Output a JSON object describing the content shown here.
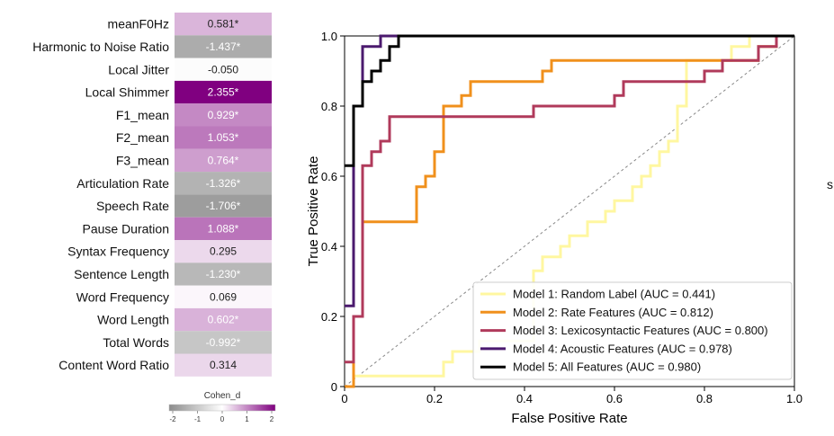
{
  "colors": {
    "neg_strong": "#8c8c8c",
    "neutral": "#ffffff",
    "pos_strong": "#800080"
  },
  "heatmap": {
    "column_label": "Cohen_d",
    "colorbar_ticks": [
      "-2",
      "-1",
      "0",
      "1",
      "2"
    ],
    "vmin": -2,
    "vmax": 2,
    "rows": [
      {
        "feature": "meanF0Hz",
        "value": 0.581,
        "label": "0.581*"
      },
      {
        "feature": "Harmonic to Noise Ratio",
        "value": -1.437,
        "label": "-1.437*"
      },
      {
        "feature": "Local Jitter",
        "value": -0.05,
        "label": "-0.050"
      },
      {
        "feature": "Local Shimmer",
        "value": 2.355,
        "label": "2.355*"
      },
      {
        "feature": "F1_mean",
        "value": 0.929,
        "label": "0.929*"
      },
      {
        "feature": "F2_mean",
        "value": 1.053,
        "label": "1.053*"
      },
      {
        "feature": "F3_mean",
        "value": 0.764,
        "label": "0.764*"
      },
      {
        "feature": "Articulation Rate",
        "value": -1.326,
        "label": "-1.326*"
      },
      {
        "feature": "Speech Rate",
        "value": -1.706,
        "label": "-1.706*"
      },
      {
        "feature": "Pause Duration",
        "value": 1.088,
        "label": "1.088*"
      },
      {
        "feature": "Syntax Frequency",
        "value": 0.295,
        "label": "0.295"
      },
      {
        "feature": "Sentence Length",
        "value": -1.23,
        "label": "-1.230*"
      },
      {
        "feature": "Word Frequency",
        "value": 0.069,
        "label": "0.069"
      },
      {
        "feature": "Word Length",
        "value": 0.602,
        "label": "0.602*"
      },
      {
        "feature": "Total Words",
        "value": -0.992,
        "label": "-0.992*"
      },
      {
        "feature": "Content Word Ratio",
        "value": 0.314,
        "label": "0.314"
      }
    ]
  },
  "chart_data": [
    {
      "type": "heatmap",
      "title": "",
      "column": "Cohen_d",
      "features": [
        "meanF0Hz",
        "Harmonic to Noise Ratio",
        "Local Jitter",
        "Local Shimmer",
        "F1_mean",
        "F2_mean",
        "F3_mean",
        "Articulation Rate",
        "Speech Rate",
        "Pause Duration",
        "Syntax Frequency",
        "Sentence Length",
        "Word Frequency",
        "Word Length",
        "Total Words",
        "Content Word Ratio"
      ],
      "values": [
        0.581,
        -1.437,
        -0.05,
        2.355,
        0.929,
        1.053,
        0.764,
        -1.326,
        -1.706,
        1.088,
        0.295,
        -1.23,
        0.069,
        0.602,
        -0.992,
        0.314
      ],
      "colorbar_range": [
        -2,
        2
      ]
    },
    {
      "type": "line",
      "title": "",
      "xlabel": "False Positive Rate",
      "ylabel": "True Positive Rate",
      "xlim": [
        0,
        1
      ],
      "ylim": [
        0,
        1
      ],
      "xticks": [
        "0",
        "0.2",
        "0.4",
        "0.6",
        "0.8",
        "1.0"
      ],
      "yticks": [
        "0",
        "0.2",
        "0.4",
        "0.6",
        "0.8",
        "1.0"
      ],
      "grid": false,
      "legend_position": "bottom-right",
      "chance_line": {
        "x": [
          0,
          1
        ],
        "y": [
          0,
          1
        ],
        "style": "dashed"
      },
      "series": [
        {
          "name": "Model 1: Random Label (AUC = 0.441)",
          "color": "#fff7a0",
          "x": [
            0,
            0.02,
            0.02,
            0.06,
            0.06,
            0.22,
            0.22,
            0.24,
            0.24,
            0.3,
            0.3,
            0.42,
            0.42,
            0.44,
            0.44,
            0.48,
            0.48,
            0.5,
            0.5,
            0.54,
            0.54,
            0.58,
            0.58,
            0.6,
            0.6,
            0.64,
            0.64,
            0.66,
            0.66,
            0.68,
            0.68,
            0.7,
            0.7,
            0.72,
            0.72,
            0.74,
            0.74,
            0.76,
            0.76,
            0.78,
            0.78,
            0.86,
            0.86,
            0.9,
            0.9,
            0.94,
            0.94,
            1.0
          ],
          "y": [
            0,
            0,
            0.03,
            0.03,
            0.03,
            0.03,
            0.07,
            0.07,
            0.1,
            0.1,
            0.13,
            0.13,
            0.33,
            0.33,
            0.37,
            0.37,
            0.4,
            0.4,
            0.43,
            0.43,
            0.47,
            0.47,
            0.5,
            0.5,
            0.53,
            0.53,
            0.57,
            0.57,
            0.6,
            0.6,
            0.63,
            0.63,
            0.67,
            0.67,
            0.7,
            0.7,
            0.8,
            0.8,
            0.93,
            0.93,
            0.93,
            0.93,
            0.97,
            0.97,
            1.0,
            1.0,
            1.0,
            1.0
          ]
        },
        {
          "name": "Model 2: Rate Features (AUC = 0.812)",
          "color": "#f0901c",
          "x": [
            0,
            0.02,
            0.02,
            0.04,
            0.04,
            0.16,
            0.16,
            0.18,
            0.18,
            0.2,
            0.2,
            0.22,
            0.22,
            0.24,
            0.24,
            0.26,
            0.26,
            0.28,
            0.28,
            0.3,
            0.3,
            0.44,
            0.44,
            0.46,
            0.46,
            0.92,
            0.92,
            0.96,
            0.96,
            1.0
          ],
          "y": [
            0,
            0,
            0.2,
            0.2,
            0.47,
            0.47,
            0.57,
            0.57,
            0.6,
            0.6,
            0.67,
            0.67,
            0.8,
            0.8,
            0.8,
            0.8,
            0.83,
            0.83,
            0.87,
            0.87,
            0.87,
            0.87,
            0.9,
            0.9,
            0.93,
            0.93,
            0.97,
            0.97,
            1.0,
            1.0
          ]
        },
        {
          "name": "Model 3: Lexicosyntactic Features (AUC = 0.800)",
          "color": "#b03a5b",
          "x": [
            0,
            0.02,
            0.02,
            0.04,
            0.04,
            0.06,
            0.06,
            0.08,
            0.08,
            0.1,
            0.1,
            0.2,
            0.2,
            0.42,
            0.42,
            0.6,
            0.6,
            0.62,
            0.62,
            0.66,
            0.66,
            0.8,
            0.8,
            0.84,
            0.84,
            0.92,
            0.92,
            0.96,
            0.96,
            1.0
          ],
          "y": [
            0.07,
            0.07,
            0.2,
            0.2,
            0.63,
            0.63,
            0.67,
            0.67,
            0.7,
            0.7,
            0.77,
            0.77,
            0.77,
            0.77,
            0.8,
            0.8,
            0.83,
            0.83,
            0.87,
            0.87,
            0.87,
            0.87,
            0.9,
            0.9,
            0.93,
            0.93,
            0.97,
            0.97,
            1.0,
            1.0
          ]
        },
        {
          "name": "Model 4: Acoustic Features (AUC = 0.978)",
          "color": "#4b1a6e",
          "x": [
            0,
            0.02,
            0.02,
            0.04,
            0.04,
            0.06,
            0.06,
            0.08,
            0.08,
            1.0
          ],
          "y": [
            0.23,
            0.23,
            0.8,
            0.8,
            0.97,
            0.97,
            0.97,
            0.97,
            1.0,
            1.0
          ]
        },
        {
          "name": "Model 5: All Features (AUC = 0.980)",
          "color": "#000000",
          "x": [
            0,
            0.02,
            0.02,
            0.04,
            0.04,
            0.06,
            0.06,
            0.08,
            0.08,
            0.1,
            0.1,
            0.12,
            0.12,
            1.0
          ],
          "y": [
            0.63,
            0.63,
            0.8,
            0.8,
            0.87,
            0.87,
            0.9,
            0.9,
            0.93,
            0.93,
            0.97,
            0.97,
            1.0,
            1.0
          ]
        }
      ]
    }
  ],
  "stray_text": "s"
}
